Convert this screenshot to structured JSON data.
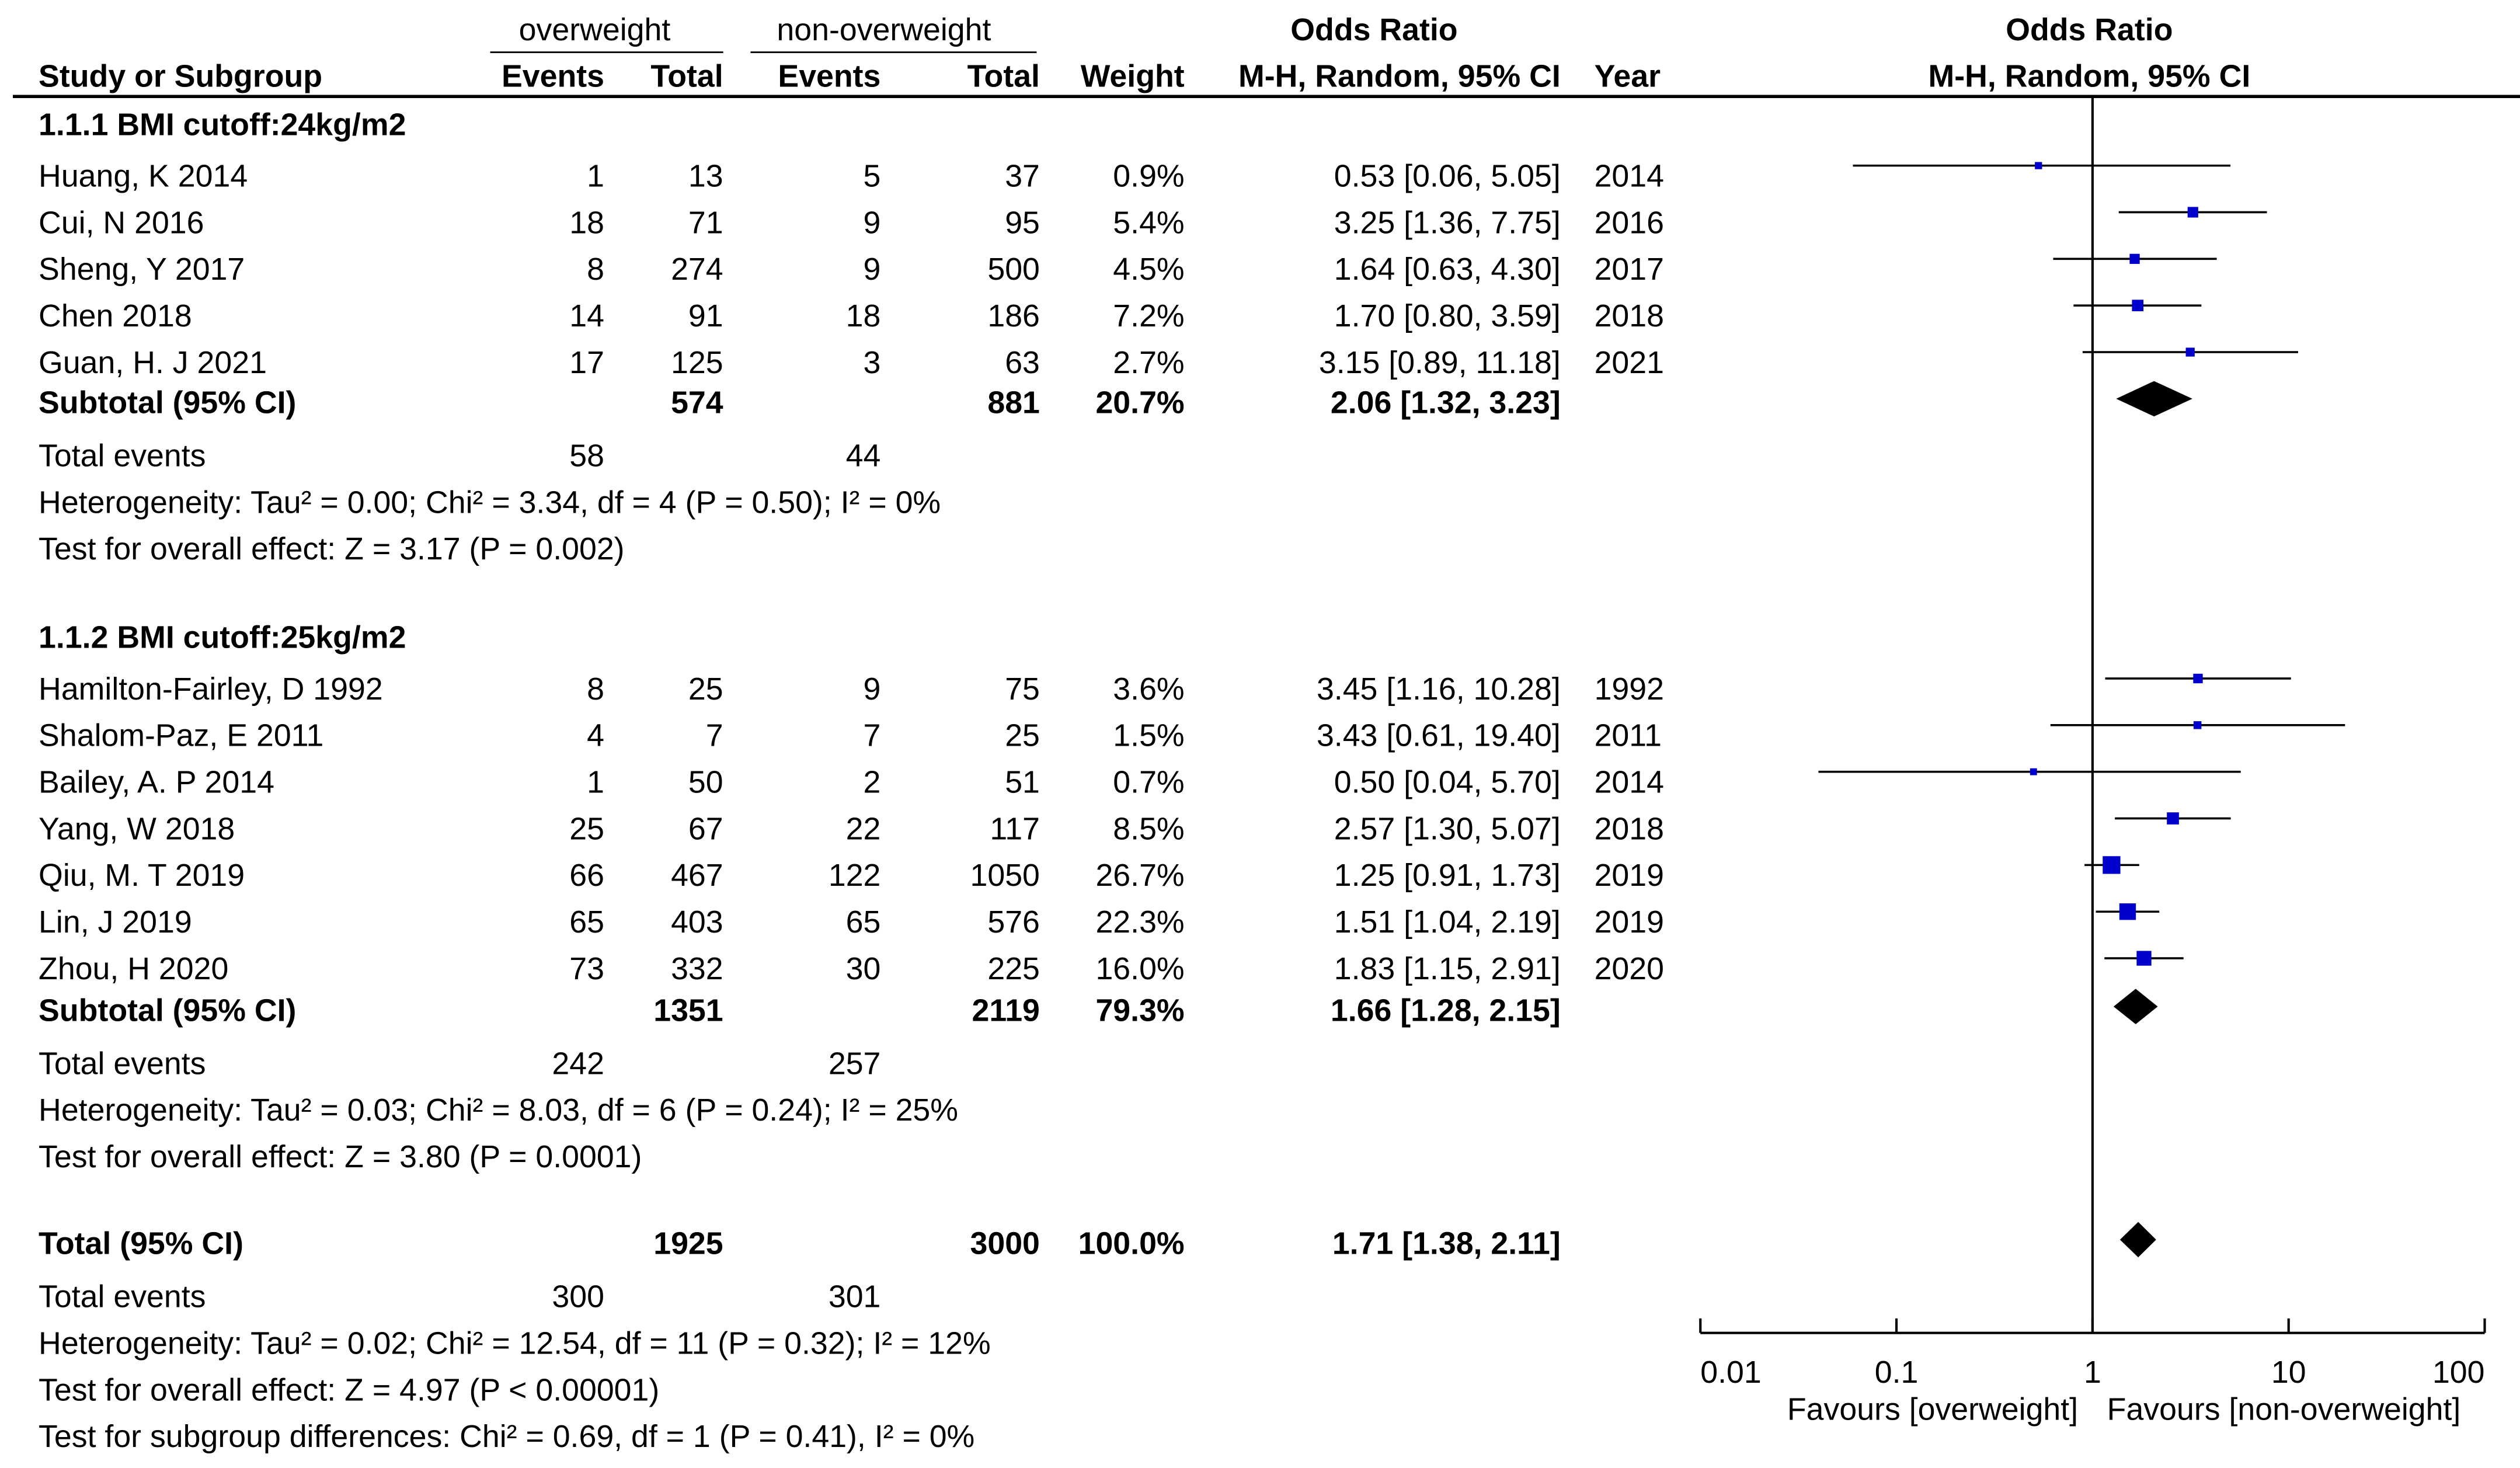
{
  "header": {
    "group1": "overweight",
    "group2": "non-overweight",
    "or_title": "Odds Ratio",
    "plot_title": "Odds Ratio",
    "col_study": "Study or Subgroup",
    "col_events1": "Events",
    "col_total1": "Total",
    "col_events2": "Events",
    "col_total2": "Total",
    "col_weight": "Weight",
    "col_method": "M-H, Random, 95% CI",
    "col_year": "Year",
    "plot_method": "M-H, Random, 95% CI"
  },
  "subgroups": [
    {
      "title": "1.1.1 BMI cutoff:24kg/m2",
      "studies": [
        {
          "name": "Huang, K 2014",
          "e1": "1",
          "t1": "13",
          "e2": "5",
          "t2": "37",
          "weight": "0.9%",
          "ci": "0.53 [0.06, 5.05]",
          "year": "2014"
        },
        {
          "name": "Cui, N 2016",
          "e1": "18",
          "t1": "71",
          "e2": "9",
          "t2": "95",
          "weight": "5.4%",
          "ci": "3.25 [1.36, 7.75]",
          "year": "2016"
        },
        {
          "name": "Sheng, Y 2017",
          "e1": "8",
          "t1": "274",
          "e2": "9",
          "t2": "500",
          "weight": "4.5%",
          "ci": "1.64 [0.63, 4.30]",
          "year": "2017"
        },
        {
          "name": "Chen 2018",
          "e1": "14",
          "t1": "91",
          "e2": "18",
          "t2": "186",
          "weight": "7.2%",
          "ci": "1.70 [0.80, 3.59]",
          "year": "2018"
        },
        {
          "name": "Guan, H. J 2021",
          "e1": "17",
          "t1": "125",
          "e2": "3",
          "t2": "63",
          "weight": "2.7%",
          "ci": "3.15 [0.89, 11.18]",
          "year": "2021"
        }
      ],
      "subtotal": {
        "label": "Subtotal (95% CI)",
        "t1": "574",
        "t2": "881",
        "weight": "20.7%",
        "ci": "2.06 [1.32, 3.23]"
      },
      "total_events": {
        "label": "Total events",
        "e1": "58",
        "e2": "44"
      },
      "heterogeneity": "Heterogeneity: Tau² = 0.00; Chi² = 3.34, df = 4 (P = 0.50); I² = 0%",
      "overall": "Test for overall effect: Z = 3.17 (P = 0.002)"
    },
    {
      "title": "1.1.2 BMI cutoff:25kg/m2",
      "studies": [
        {
          "name": "Hamilton-Fairley, D 1992",
          "e1": "8",
          "t1": "25",
          "e2": "9",
          "t2": "75",
          "weight": "3.6%",
          "ci": "3.45 [1.16, 10.28]",
          "year": "1992"
        },
        {
          "name": "Shalom-Paz, E 2011",
          "e1": "4",
          "t1": "7",
          "e2": "7",
          "t2": "25",
          "weight": "1.5%",
          "ci": "3.43 [0.61, 19.40]",
          "year": "2011"
        },
        {
          "name": "Bailey, A. P 2014",
          "e1": "1",
          "t1": "50",
          "e2": "2",
          "t2": "51",
          "weight": "0.7%",
          "ci": "0.50 [0.04, 5.70]",
          "year": "2014"
        },
        {
          "name": "Yang, W 2018",
          "e1": "25",
          "t1": "67",
          "e2": "22",
          "t2": "117",
          "weight": "8.5%",
          "ci": "2.57 [1.30, 5.07]",
          "year": "2018"
        },
        {
          "name": "Qiu, M. T 2019",
          "e1": "66",
          "t1": "467",
          "e2": "122",
          "t2": "1050",
          "weight": "26.7%",
          "ci": "1.25 [0.91, 1.73]",
          "year": "2019"
        },
        {
          "name": "Lin, J 2019",
          "e1": "65",
          "t1": "403",
          "e2": "65",
          "t2": "576",
          "weight": "22.3%",
          "ci": "1.51 [1.04, 2.19]",
          "year": "2019"
        },
        {
          "name": "Zhou, H 2020",
          "e1": "73",
          "t1": "332",
          "e2": "30",
          "t2": "225",
          "weight": "16.0%",
          "ci": "1.83 [1.15, 2.91]",
          "year": "2020"
        }
      ],
      "subtotal": {
        "label": "Subtotal (95% CI)",
        "t1": "1351",
        "t2": "2119",
        "weight": "79.3%",
        "ci": "1.66 [1.28, 2.15]"
      },
      "total_events": {
        "label": "Total events",
        "e1": "242",
        "e2": "257"
      },
      "heterogeneity": "Heterogeneity: Tau² = 0.03; Chi² = 8.03, df = 6 (P = 0.24); I² = 25%",
      "overall": "Test for overall effect: Z = 3.80 (P = 0.0001)"
    }
  ],
  "total": {
    "label": "Total (95% CI)",
    "t1": "1925",
    "t2": "3000",
    "weight": "100.0%",
    "ci": "1.71 [1.38, 2.11]",
    "events_label": "Total events",
    "e1": "300",
    "e2": "301",
    "heterogeneity": "Heterogeneity: Tau² = 0.02; Chi² = 12.54, df = 11 (P = 0.32); I² = 12%",
    "overall": "Test for overall effect: Z = 4.97 (P < 0.00001)",
    "subgroup_diff": "Test for subgroup differences: Chi² = 0.69, df = 1 (P = 0.41), I² = 0%"
  },
  "chart_data": {
    "type": "forest",
    "x_scale": "log",
    "xlim": [
      0.01,
      100
    ],
    "ticks": [
      0.01,
      0.1,
      1,
      10,
      100
    ],
    "tick_labels": [
      "0.01",
      "0.1",
      "1",
      "10",
      "100"
    ],
    "favours_left": "Favours [overweight]",
    "favours_right": "Favours [non-overweight]",
    "study_color": "#0000cc",
    "diamond_color": "#000000",
    "studies": [
      {
        "name": "Huang, K 2014",
        "or": 0.53,
        "lo": 0.06,
        "hi": 5.05,
        "weight": 0.9
      },
      {
        "name": "Cui, N 2016",
        "or": 3.25,
        "lo": 1.36,
        "hi": 7.75,
        "weight": 5.4
      },
      {
        "name": "Sheng, Y 2017",
        "or": 1.64,
        "lo": 0.63,
        "hi": 4.3,
        "weight": 4.5
      },
      {
        "name": "Chen 2018",
        "or": 1.7,
        "lo": 0.8,
        "hi": 3.59,
        "weight": 7.2
      },
      {
        "name": "Guan, H. J 2021",
        "or": 3.15,
        "lo": 0.89,
        "hi": 11.18,
        "weight": 2.7
      },
      {
        "name": "Hamilton-Fairley, D 1992",
        "or": 3.45,
        "lo": 1.16,
        "hi": 10.28,
        "weight": 3.6
      },
      {
        "name": "Shalom-Paz, E 2011",
        "or": 3.43,
        "lo": 0.61,
        "hi": 19.4,
        "weight": 1.5
      },
      {
        "name": "Bailey, A. P 2014",
        "or": 0.5,
        "lo": 0.04,
        "hi": 5.7,
        "weight": 0.7
      },
      {
        "name": "Yang, W 2018",
        "or": 2.57,
        "lo": 1.3,
        "hi": 5.07,
        "weight": 8.5
      },
      {
        "name": "Qiu, M. T 2019",
        "or": 1.25,
        "lo": 0.91,
        "hi": 1.73,
        "weight": 26.7
      },
      {
        "name": "Lin, J 2019",
        "or": 1.51,
        "lo": 1.04,
        "hi": 2.19,
        "weight": 22.3
      },
      {
        "name": "Zhou, H 2020",
        "or": 1.83,
        "lo": 1.15,
        "hi": 2.91,
        "weight": 16.0
      }
    ],
    "diamonds": [
      {
        "name": "Subtotal (95% CI) 1.1.1",
        "or": 2.06,
        "lo": 1.32,
        "hi": 3.23
      },
      {
        "name": "Subtotal (95% CI) 1.1.2",
        "or": 1.66,
        "lo": 1.28,
        "hi": 2.15
      },
      {
        "name": "Total (95% CI)",
        "or": 1.71,
        "lo": 1.38,
        "hi": 2.11
      }
    ]
  }
}
